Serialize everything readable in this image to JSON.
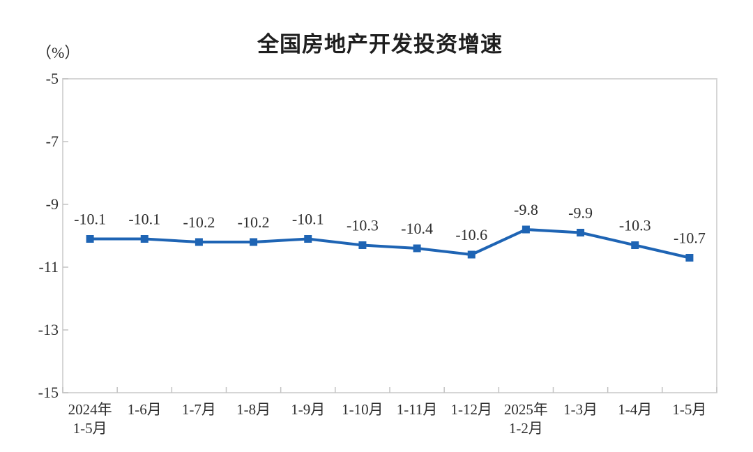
{
  "chart_data": {
    "type": "line",
    "title": "全国房地产开发投资增速",
    "unit_label": "（%）",
    "categories": [
      [
        "2024年",
        "1-5月"
      ],
      [
        "1-6月"
      ],
      [
        "1-7月"
      ],
      [
        "1-8月"
      ],
      [
        "1-9月"
      ],
      [
        "1-10月"
      ],
      [
        "1-11月"
      ],
      [
        "1-12月"
      ],
      [
        "2025年",
        "1-2月"
      ],
      [
        "1-3月"
      ],
      [
        "1-4月"
      ],
      [
        "1-5月"
      ]
    ],
    "series": [
      {
        "name": "全国房地产开发投资增速",
        "values": [
          -10.1,
          -10.1,
          -10.2,
          -10.2,
          -10.1,
          -10.3,
          -10.4,
          -10.6,
          -9.8,
          -9.9,
          -10.3,
          -10.7
        ],
        "labels": [
          "-10.1",
          "-10.1",
          "-10.2",
          "-10.2",
          "-10.1",
          "-10.3",
          "-10.4",
          "-10.6",
          "-9.8",
          "-9.9",
          "-10.3",
          "-10.7"
        ]
      }
    ],
    "y_axis": {
      "min": -15,
      "max": -5,
      "ticks": [
        -5,
        -7,
        -9,
        -11,
        -13,
        -15
      ],
      "tick_labels": [
        "-5",
        "-7",
        "-9",
        "-11",
        "-13",
        "-15"
      ]
    },
    "grid": false,
    "legend_position": "none",
    "marker_shape": "square",
    "colors": {
      "line": "#1e64b4",
      "marker": "#1e64b4",
      "plot_border": "#d6d6d6",
      "tick_mark": "#c2c2c2",
      "tick_text": "#2e2e2e",
      "title_text": "#1f1f1f"
    }
  }
}
